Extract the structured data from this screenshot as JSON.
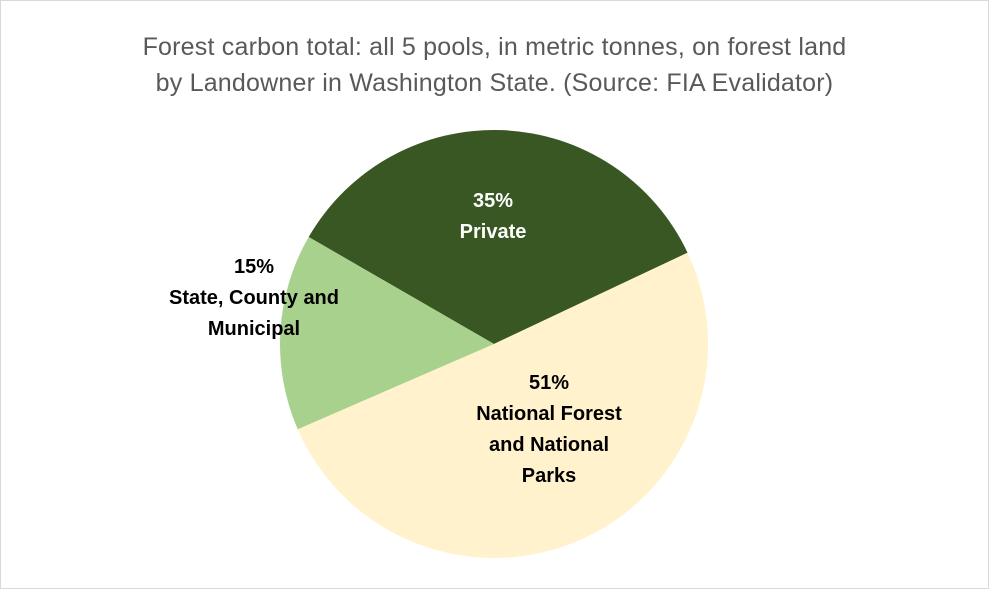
{
  "chart_data": {
    "type": "pie",
    "title_lines": [
      "Forest carbon total: all 5 pools, in metric tonnes, on forest land",
      "by Landowner in Washington State.  (Source: FIA Evalidator)"
    ],
    "slices": [
      {
        "name": "Private",
        "label_lines": [
          "Private"
        ],
        "percent_label": "35%",
        "value": 35,
        "color": "#385723",
        "text_color": "#ffffff"
      },
      {
        "name": "National Forest and National Parks",
        "label_lines": [
          "National Forest",
          "and National",
          "Parks"
        ],
        "percent_label": "51%",
        "value": 51,
        "color": "#fff2cc",
        "text_color": "#000000"
      },
      {
        "name": "State, County and Municipal",
        "label_lines": [
          "State, County and",
          "Municipal"
        ],
        "percent_label": "15%",
        "value": 15,
        "color": "#a9d18e",
        "text_color": "#000000"
      }
    ],
    "legend": "none"
  }
}
